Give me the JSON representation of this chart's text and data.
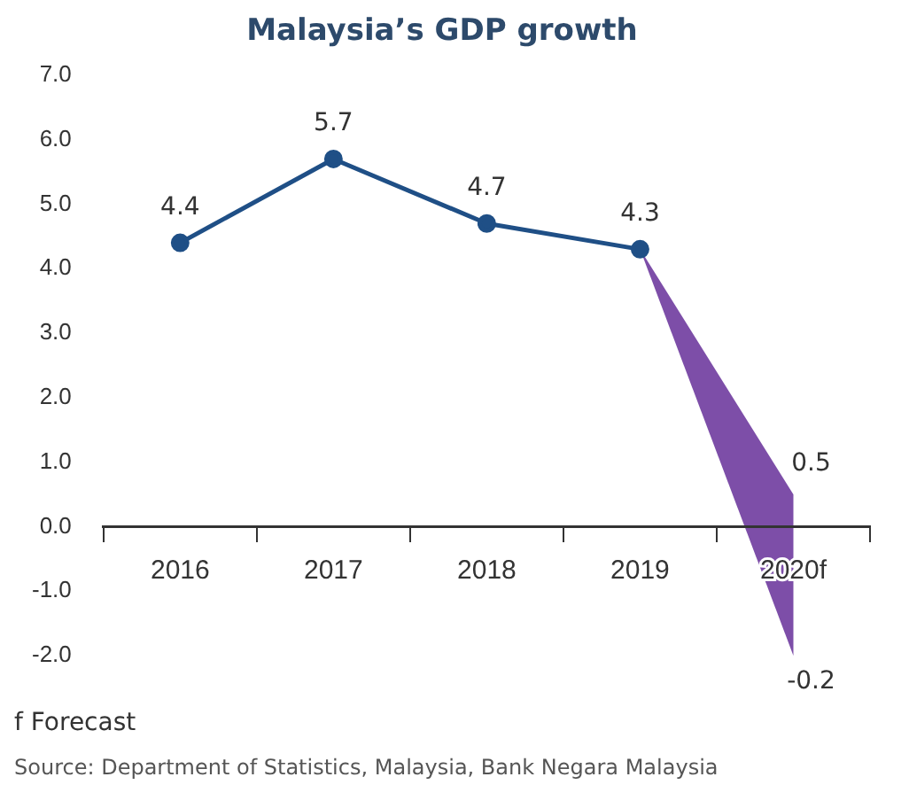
{
  "chart_data": {
    "type": "line",
    "title": "Malaysia’s GDP growth",
    "categories": [
      "2016",
      "2017",
      "2018",
      "2019",
      "2020f"
    ],
    "series": [
      {
        "color": "#1f4f86",
        "values": [
          4.4,
          5.7,
          4.7,
          4.3,
          null
        ],
        "data_labels": true,
        "marker": "circle"
      },
      {
        "type": "area",
        "color": "#7d4ea8",
        "values": [
          null,
          null,
          null,
          null,
          null
        ],
        "lower": [
          null,
          null,
          null,
          4.3,
          -2.0
        ],
        "upper": [
          null,
          null,
          null,
          4.3,
          0.5
        ],
        "marker": "none"
      }
    ],
    "ylim": [
      -2,
      7
    ],
    "yticks": [
      {
        "value": -2,
        "label": "-2.0"
      },
      {
        "value": -1,
        "label": "-1.0"
      },
      {
        "value": 0,
        "label": "0.0"
      },
      {
        "value": 1,
        "label": "1.0"
      },
      {
        "value": 2,
        "label": "2.0"
      },
      {
        "value": 3,
        "label": "3.0"
      },
      {
        "value": 4,
        "label": "4.0"
      },
      {
        "value": 5,
        "label": "5.0"
      },
      {
        "value": 6,
        "label": "6.0"
      },
      {
        "value": 7,
        "label": "7.0"
      }
    ],
    "grid": false,
    "legend": false,
    "annotations": [
      {
        "text": "0.5",
        "x": "2020f",
        "y": 0.5
      },
      {
        "text": "-0.2",
        "x": "2020f",
        "y": -2.0
      },
      "f Forecast",
      "Source: Department of Statistics, Malaysia, Bank Negara Malaysia"
    ]
  }
}
